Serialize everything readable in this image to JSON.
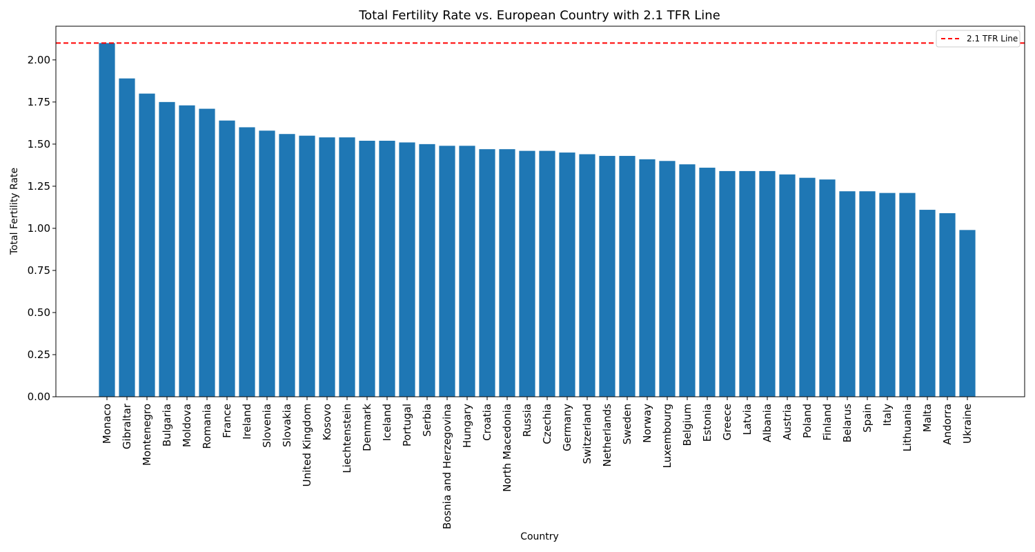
{
  "chart_data": {
    "type": "bar",
    "title": "Total Fertility Rate vs. European Country with 2.1 TFR Line",
    "xlabel": "Country",
    "ylabel": "Total Fertility Rate",
    "ylim": [
      0,
      2.2
    ],
    "yticks": [
      "0.00",
      "0.25",
      "0.50",
      "0.75",
      "1.00",
      "1.25",
      "1.50",
      "1.75",
      "2.00"
    ],
    "bar_color": "#1f77b4",
    "categories": [
      "Monaco",
      "Gibraltar",
      "Montenegro",
      "Bulgaria",
      "Moldova",
      "Romania",
      "France",
      "Ireland",
      "Slovenia",
      "Slovakia",
      "United Kingdom",
      "Kosovo",
      "Liechtenstein",
      "Denmark",
      "Iceland",
      "Portugal",
      "Serbia",
      "Bosnia and Herzegovina",
      "Hungary",
      "Croatia",
      "North Macedonia",
      "Russia",
      "Czechia",
      "Germany",
      "Switzerland",
      "Netherlands",
      "Sweden",
      "Norway",
      "Luxembourg",
      "Belgium",
      "Estonia",
      "Greece",
      "Latvia",
      "Albania",
      "Austria",
      "Poland",
      "Finland",
      "Belarus",
      "Spain",
      "Italy",
      "Lithuania",
      "Malta",
      "Andorra",
      "Ukraine"
    ],
    "values": [
      2.1,
      1.89,
      1.8,
      1.75,
      1.73,
      1.71,
      1.64,
      1.6,
      1.58,
      1.56,
      1.55,
      1.54,
      1.54,
      1.52,
      1.52,
      1.51,
      1.5,
      1.49,
      1.49,
      1.47,
      1.47,
      1.46,
      1.46,
      1.45,
      1.44,
      1.43,
      1.43,
      1.41,
      1.4,
      1.38,
      1.36,
      1.34,
      1.34,
      1.34,
      1.32,
      1.3,
      1.29,
      1.22,
      1.22,
      1.21,
      1.21,
      1.11,
      1.09,
      0.99
    ],
    "reference_line": {
      "value": 2.1,
      "label": "2.1 TFR Line",
      "color": "#ff0000",
      "style": "dashed"
    },
    "legend": {
      "position": "top-right",
      "entries": [
        "2.1 TFR Line"
      ]
    }
  }
}
